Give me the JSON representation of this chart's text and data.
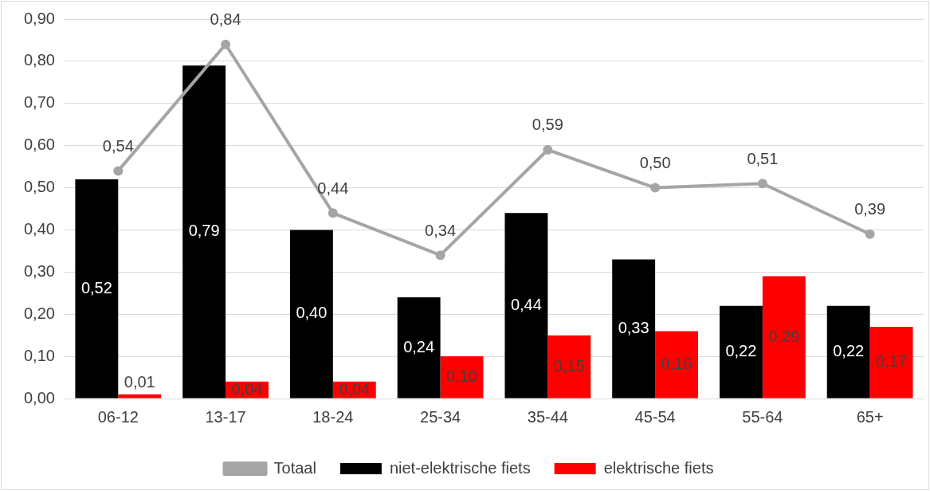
{
  "chart_data": {
    "type": "bar",
    "categories": [
      "06-12",
      "13-17",
      "18-24",
      "25-34",
      "35-44",
      "45-54",
      "55-64",
      "65+"
    ],
    "series": [
      {
        "name": "niet-elektrische fiets",
        "color": "#000000",
        "values": [
          0.52,
          0.79,
          0.4,
          0.24,
          0.44,
          0.33,
          0.22,
          0.22
        ],
        "value_labels": [
          "0,52",
          "0,79",
          "0,40",
          "0,24",
          "0,44",
          "0,33",
          "0,22",
          "0,22"
        ]
      },
      {
        "name": "elektrische fiets",
        "color": "#ff0000",
        "values": [
          0.01,
          0.04,
          0.04,
          0.1,
          0.15,
          0.16,
          0.29,
          0.17
        ],
        "value_labels": [
          "0,01",
          "0,04",
          "0,04",
          "0,10",
          "0,15",
          "0,16",
          "0,29",
          "0,17"
        ]
      },
      {
        "name": "Totaal",
        "type": "line",
        "color": "#a5a5a5",
        "marker": "circle",
        "values": [
          0.54,
          0.84,
          0.44,
          0.34,
          0.59,
          0.5,
          0.51,
          0.39
        ],
        "value_labels": [
          "0,54",
          "0,84",
          "0,44",
          "0,34",
          "0,59",
          "0,50",
          "0,51",
          "0,39"
        ]
      }
    ],
    "ylim": [
      0,
      0.9
    ],
    "yticks": [
      {
        "value": 0,
        "label": "0,00"
      },
      {
        "value": 0.1,
        "label": "0,10"
      },
      {
        "value": 0.2,
        "label": "0,20"
      },
      {
        "value": 0.3,
        "label": "0,30"
      },
      {
        "value": 0.4,
        "label": "0,40"
      },
      {
        "value": 0.5,
        "label": "0,50"
      },
      {
        "value": 0.6,
        "label": "0,60"
      },
      {
        "value": 0.7,
        "label": "0,70"
      },
      {
        "value": 0.8,
        "label": "0,80"
      },
      {
        "value": 0.9,
        "label": "0,90"
      }
    ],
    "grid": "y",
    "legend": "bottom"
  }
}
